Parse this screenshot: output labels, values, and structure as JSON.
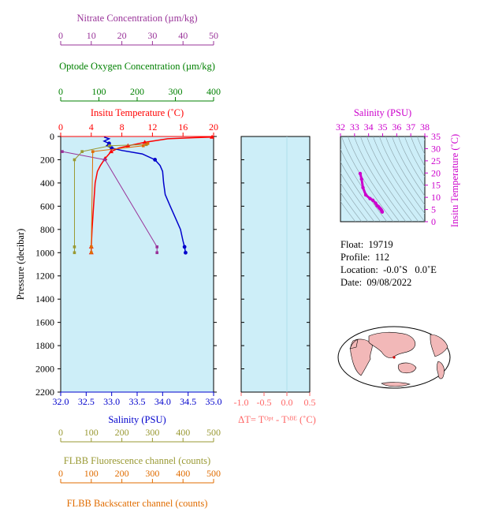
{
  "colors": {
    "nitrate": "#993399",
    "oxygen": "#008000",
    "temperature": "#ff0000",
    "salinity": "#0000cc",
    "fluorescence": "#999933",
    "backscatter": "#e06c00",
    "delta_t": "#ff6666",
    "ts_panel": "#cc00cc",
    "plot_background": "#cdeef8",
    "land": "#f2b8b8"
  },
  "info": {
    "float": "Float:  19719",
    "profile": "Profile:  112",
    "location": "Location:  -0.0˚S   0.0˚E",
    "date": "Date:  09/08/2022"
  },
  "chart_data": [
    {
      "type": "line",
      "name": "main-profile",
      "ylabel": "Pressure (decibar)",
      "ylim": [
        2200,
        0
      ],
      "yticks": [
        "0",
        "200",
        "400",
        "600",
        "800",
        "1000",
        "1200",
        "1400",
        "1600",
        "1800",
        "2000",
        "2200"
      ],
      "axes": {
        "nitrate": {
          "label": "Nitrate Concentration (µm/kg)",
          "range": [
            0,
            50
          ],
          "ticks": [
            "0",
            "10",
            "20",
            "30",
            "40",
            "50"
          ]
        },
        "oxygen": {
          "label": "Optode Oxygen Concentration (µm/kg)",
          "range": [
            0,
            400
          ],
          "ticks": [
            "0",
            "100",
            "200",
            "300",
            "400"
          ]
        },
        "temperature": {
          "label": "Insitu Temperature (˚C)",
          "range": [
            0,
            20
          ],
          "ticks": [
            "0",
            "4",
            "8",
            "12",
            "16",
            "20"
          ]
        },
        "salinity": {
          "label": "Salinity (PSU)",
          "range": [
            32.0,
            35.0
          ],
          "ticks": [
            "32.0",
            "32.5",
            "33.0",
            "33.5",
            "34.0",
            "34.5",
            "35.0"
          ]
        },
        "fluorescence": {
          "label": "FLBB Fluorescence channel (counts)",
          "range": [
            0,
            500
          ],
          "ticks": [
            "0",
            "100",
            "200",
            "300",
            "400",
            "500"
          ]
        },
        "backscatter": {
          "label": "FLBB Backscatter channel (counts)",
          "range": [
            0,
            500
          ],
          "ticks": [
            "0",
            "100",
            "200",
            "300",
            "400",
            "500"
          ]
        }
      },
      "series": [
        {
          "key": "temperature",
          "pressure": [
            5,
            10,
            20,
            50,
            80,
            100,
            130,
            160,
            190,
            220,
            250,
            300,
            400,
            600,
            800,
            950,
            1000
          ],
          "values": [
            19.8,
            17.5,
            14.0,
            11.0,
            8.8,
            7.6,
            6.6,
            6.2,
            5.8,
            5.5,
            5.2,
            4.8,
            4.5,
            4.3,
            4.1,
            4.0,
            4.0
          ],
          "markers": [
            5,
            50,
            80,
            130,
            190,
            950,
            1000
          ]
        },
        {
          "key": "salinity",
          "pressure": [
            5,
            20,
            40,
            60,
            80,
            100,
            120,
            150,
            200,
            250,
            300,
            400,
            500,
            600,
            700,
            800,
            900,
            950,
            1000
          ],
          "values": [
            32.85,
            32.95,
            32.85,
            32.95,
            32.9,
            33.0,
            33.2,
            33.6,
            33.85,
            33.95,
            34.0,
            34.02,
            34.05,
            34.15,
            34.25,
            34.35,
            34.4,
            34.43,
            34.45
          ],
          "markers": [
            60,
            100,
            130,
            200,
            950,
            1000
          ]
        },
        {
          "key": "nitrate",
          "pressure": [
            130,
            200,
            950,
            1000
          ],
          "values": [
            0.5,
            14.5,
            31.5,
            31.5
          ],
          "markers": [
            130,
            200,
            950,
            1000
          ]
        },
        {
          "key": "fluorescence",
          "pressure": [
            70,
            80,
            130,
            200,
            950,
            1000
          ],
          "values": [
            280,
            160,
            70,
            45,
            45,
            45
          ],
          "markers": [
            70,
            80,
            130,
            200,
            950,
            1000
          ]
        },
        {
          "key": "backscatter",
          "pressure": [
            60,
            80,
            130,
            950,
            1000
          ],
          "values": [
            285,
            270,
            105,
            100,
            100
          ],
          "markers": [
            60,
            80,
            130,
            950,
            1000
          ]
        }
      ]
    },
    {
      "type": "line",
      "name": "delta-t",
      "xlabel": "ΔT= Tᴼᵖᵗ - Tˢᴮᴱ (˚C)",
      "xlim": [
        -1.0,
        0.5
      ],
      "xticks": [
        "-1.0",
        "-0.5",
        "0.0",
        "0.5"
      ],
      "ylim": [
        2200,
        0
      ],
      "series": []
    },
    {
      "type": "scatter",
      "name": "ts-diagram",
      "xlabel": "Salinity (PSU)",
      "ylabel": "Insitu Temperature (˚C)",
      "xlim": [
        32,
        38
      ],
      "ylim": [
        0,
        35
      ],
      "xticks": [
        "32",
        "33",
        "34",
        "35",
        "36",
        "37",
        "38"
      ],
      "yticks": [
        "0",
        "5",
        "10",
        "15",
        "20",
        "25",
        "30",
        "35"
      ],
      "points": [
        [
          33.4,
          19.8
        ],
        [
          33.5,
          17.5
        ],
        [
          33.6,
          14.0
        ],
        [
          33.8,
          11.0
        ],
        [
          34.1,
          9.5
        ],
        [
          34.3,
          8.8
        ],
        [
          34.5,
          7.6
        ],
        [
          34.6,
          6.6
        ],
        [
          34.7,
          6.2
        ],
        [
          34.75,
          5.8
        ],
        [
          34.8,
          5.5
        ],
        [
          34.85,
          5.2
        ],
        [
          34.9,
          4.8
        ],
        [
          34.93,
          4.5
        ],
        [
          34.95,
          4.2
        ],
        [
          34.97,
          4.0
        ]
      ]
    }
  ]
}
